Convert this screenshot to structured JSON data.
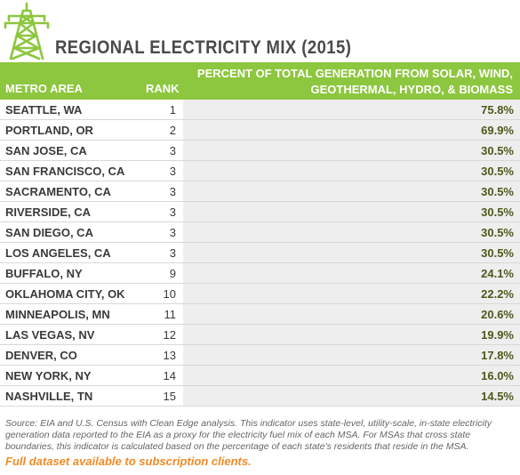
{
  "header": {
    "icon": "power-tower-icon",
    "title": "REGIONAL ELECTRICITY MIX (2015)"
  },
  "columns": {
    "metro": "METRO AREA",
    "rank": "RANK",
    "percent": "PERCENT OF TOTAL GENERATION FROM SOLAR, WIND, GEOTHERMAL, HYDRO, & BIOMASS"
  },
  "chart_data": {
    "type": "table",
    "title": "REGIONAL ELECTRICITY MIX (2015)",
    "columns": [
      "METRO AREA",
      "RANK",
      "PERCENT OF TOTAL GENERATION FROM SOLAR, WIND, GEOTHERMAL, HYDRO, & BIOMASS"
    ],
    "rows": [
      {
        "metro": "SEATTLE, WA",
        "rank": "1",
        "percent": "75.8%"
      },
      {
        "metro": "PORTLAND, OR",
        "rank": "2",
        "percent": "69.9%"
      },
      {
        "metro": "SAN JOSE, CA",
        "rank": "3",
        "percent": "30.5%"
      },
      {
        "metro": "SAN FRANCISCO, CA",
        "rank": "3",
        "percent": "30.5%"
      },
      {
        "metro": "SACRAMENTO, CA",
        "rank": "3",
        "percent": "30.5%"
      },
      {
        "metro": "RIVERSIDE, CA",
        "rank": "3",
        "percent": "30.5%"
      },
      {
        "metro": "SAN DIEGO, CA",
        "rank": "3",
        "percent": "30.5%"
      },
      {
        "metro": "LOS ANGELES, CA",
        "rank": "3",
        "percent": "30.5%"
      },
      {
        "metro": "BUFFALO, NY",
        "rank": "9",
        "percent": "24.1%"
      },
      {
        "metro": "OKLAHOMA CITY, OK",
        "rank": "10",
        "percent": "22.2%"
      },
      {
        "metro": "MINNEAPOLIS, MN",
        "rank": "11",
        "percent": "20.6%"
      },
      {
        "metro": "LAS VEGAS, NV",
        "rank": "12",
        "percent": "19.9%"
      },
      {
        "metro": "DENVER, CO",
        "rank": "13",
        "percent": "17.8%"
      },
      {
        "metro": "NEW YORK, NY",
        "rank": "14",
        "percent": "16.0%"
      },
      {
        "metro": "NASHVILLE, TN",
        "rank": "15",
        "percent": "14.5%"
      }
    ]
  },
  "footer": {
    "source": "Source: EIA and U.S. Census with Clean Edge analysis. This indicator uses state-level, utility-scale, in-state electricity generation data reported to the EIA as a proxy for the electricity fuel mix of each MSA. For MSAs that cross state boundaries, this indicator is calculated based on the percentage of each state's residents that reside in the MSA.",
    "cta": "Full dataset available to subscription clients."
  },
  "colors": {
    "accent": "#8dc63f",
    "title": "#4a4a4a",
    "cta": "#f08a24",
    "value": "#4d5a1e"
  }
}
